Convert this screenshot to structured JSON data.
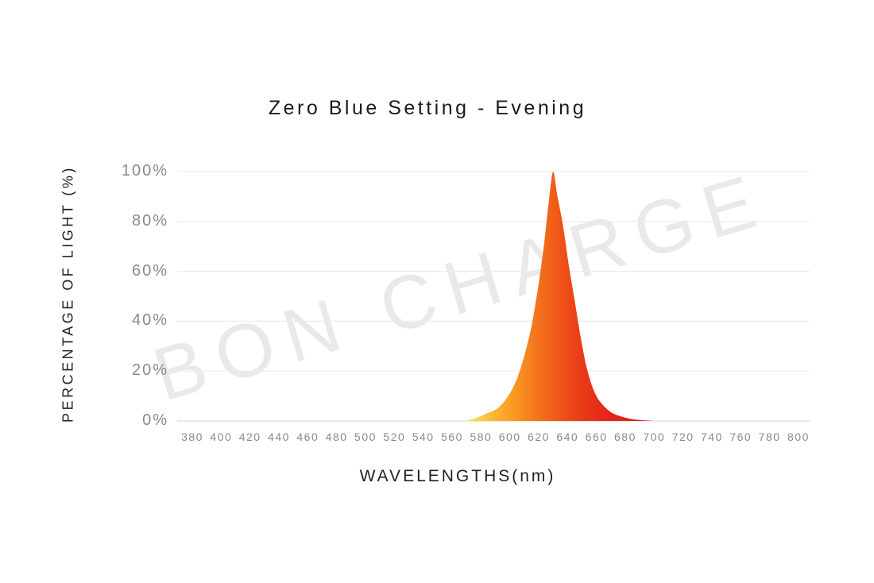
{
  "page": {
    "background_color": "#ffffff"
  },
  "watermark": {
    "text": "BON CHARGE",
    "color": "rgba(0,0,0,0.085)",
    "rotation_deg": -16.5
  },
  "chart_data": {
    "type": "area",
    "title": "Zero Blue Setting - Evening",
    "xlabel": "WAVELENGTHS(nm)",
    "ylabel": "PERCENTAGE OF LIGHT (%)",
    "x_tick_labels": [
      "380",
      "400",
      "420",
      "440",
      "460",
      "480",
      "500",
      "520",
      "540",
      "560",
      "580",
      "600",
      "620",
      "640",
      "660",
      "680",
      "700",
      "720",
      "740",
      "760",
      "780",
      "800"
    ],
    "y_tick_labels": [
      "100%",
      "80%",
      "60%",
      "40%",
      "20%",
      "0%"
    ],
    "xlim_nm": [
      380,
      800
    ],
    "ylim_pct": [
      0,
      100
    ],
    "grid": "horizontal-only",
    "legend": "none",
    "peak_wavelength_nm": 630,
    "peak_value_pct": 100,
    "series": [
      {
        "name": "Zero Blue Setting evening light spectrum",
        "x_nm": [
          570,
          578,
          584,
          590,
          595,
          600,
          605,
          610,
          615,
          620,
          624,
          627,
          630,
          633,
          637,
          641,
          645,
          649,
          653,
          657,
          661,
          666,
          671,
          677,
          684,
          692,
          700
        ],
        "y_pct": [
          0,
          1.5,
          3,
          4.5,
          7,
          11,
          17,
          26,
          38,
          55,
          72,
          88,
          100,
          90,
          78,
          62,
          48,
          34,
          22,
          14,
          9,
          5.5,
          3.2,
          1.8,
          0.8,
          0.3,
          0
        ]
      }
    ],
    "fill_gradient": [
      {
        "offset": 0.0,
        "color": "#ffe37c"
      },
      {
        "offset": 0.06,
        "color": "#ffd24f"
      },
      {
        "offset": 0.14,
        "color": "#fdb932"
      },
      {
        "offset": 0.25,
        "color": "#f99c22"
      },
      {
        "offset": 0.38,
        "color": "#f4741c"
      },
      {
        "offset": 0.5,
        "color": "#ef5418"
      },
      {
        "offset": 0.62,
        "color": "#e93a18"
      },
      {
        "offset": 0.75,
        "color": "#e52618"
      },
      {
        "offset": 1.0,
        "color": "#e01117"
      }
    ]
  },
  "colors": {
    "title_text": "#1b1b1b",
    "axis_title_text": "#222222",
    "tick_text": "#8a8a8a",
    "gridline": "#ececec",
    "baseline": "#e2e2e2",
    "background": "#ffffff"
  }
}
